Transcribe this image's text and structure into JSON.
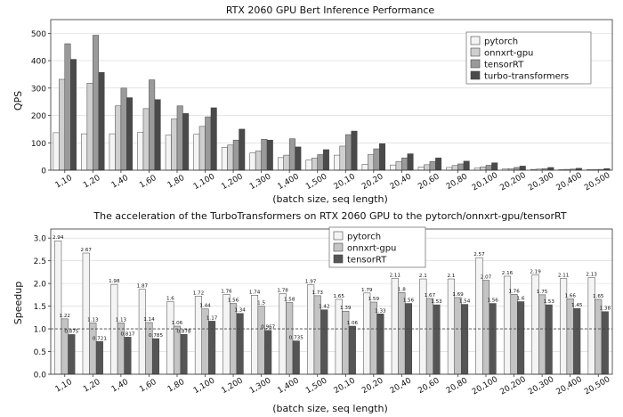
{
  "chart_data": [
    {
      "type": "bar",
      "title": "RTX 2060 GPU Bert Inference Performance",
      "xlabel": "(batch size, seq length)",
      "ylabel": "QPS",
      "ylim": [
        0,
        550
      ],
      "yticks": [
        0,
        100,
        200,
        300,
        400,
        500
      ],
      "grid": "horizontal",
      "legend_position": "top-right",
      "categories": [
        "1,10",
        "1,20",
        "1,40",
        "1,60",
        "1,80",
        "1,100",
        "1,200",
        "1,300",
        "1,400",
        "1,500",
        "20,10",
        "20,20",
        "20,40",
        "20,60",
        "20,80",
        "20,100",
        "20,200",
        "20,300",
        "20,400",
        "20,500"
      ],
      "series": [
        {
          "name": "pytorch",
          "color": "#f4f4f4",
          "values": [
            137,
            133,
            133,
            138,
            128,
            131,
            83,
            63,
            46,
            37,
            55,
            22,
            19,
            12,
            10,
            8,
            5,
            3,
            2,
            2
          ]
        },
        {
          "name": "onnxrt-gpu",
          "color": "#cfcfcf",
          "values": [
            332,
            318,
            235,
            225,
            187,
            160,
            92,
            70,
            55,
            44,
            88,
            57,
            32,
            20,
            17,
            12,
            6,
            4,
            3,
            2
          ]
        },
        {
          "name": "tensorRT",
          "color": "#9a9a9a",
          "values": [
            462,
            493,
            300,
            330,
            235,
            195,
            110,
            113,
            115,
            57,
            130,
            78,
            45,
            32,
            23,
            18,
            10,
            6,
            4,
            3
          ]
        },
        {
          "name": "turbo-transformers",
          "color": "#4a4a4a",
          "values": [
            405,
            357,
            265,
            258,
            207,
            228,
            150,
            110,
            85,
            75,
            143,
            97,
            60,
            45,
            33,
            27,
            15,
            10,
            7,
            6
          ]
        }
      ]
    },
    {
      "type": "bar",
      "title": "The acceleration of the TurboTransformers on RTX 2060 GPU to the pytorch/onnxrt-gpu/tensorRT",
      "xlabel": "(batch size, seq length)",
      "ylabel": "Speedup",
      "ylim": [
        0,
        3.2
      ],
      "yticks": [
        0.0,
        0.5,
        1.0,
        1.5,
        2.0,
        2.5,
        3.0
      ],
      "reference_line": 1.0,
      "grid": "horizontal",
      "legend_position": "top-center",
      "categories": [
        "1,10",
        "1,20",
        "1,40",
        "1,60",
        "1,80",
        "1,100",
        "1,200",
        "1,300",
        "1,400",
        "1,500",
        "20,10",
        "20,20",
        "20,40",
        "20,60",
        "20,80",
        "20,100",
        "20,200",
        "20,300",
        "20,400",
        "20,500"
      ],
      "series": [
        {
          "name": "pytorch",
          "color": "#f4f4f4",
          "values": [
            2.94,
            2.67,
            1.98,
            1.87,
            1.6,
            1.72,
            1.76,
            1.74,
            1.78,
            1.97,
            1.65,
            1.79,
            2.11,
            2.1,
            2.1,
            2.57,
            2.16,
            2.19,
            2.11,
            2.13
          ],
          "labels": [
            "2.94",
            "2.67",
            "1.98",
            "1.87",
            "1.6",
            "1.72",
            "1.76",
            "1.74",
            "1.78",
            "1.97",
            "1.65",
            "1.79",
            "2.11",
            "2.1",
            "2.1",
            "2.57",
            "2.16",
            "2.19",
            "2.11",
            "2.13"
          ]
        },
        {
          "name": "onnxrt-gpu",
          "color": "#c4c4c4",
          "values": [
            1.22,
            1.13,
            1.13,
            1.14,
            1.06,
            1.44,
            1.56,
            1.5,
            1.58,
            1.73,
            1.39,
            1.59,
            1.8,
            1.67,
            1.69,
            2.07,
            1.76,
            1.75,
            1.66,
            1.65
          ],
          "labels": [
            "1.22",
            "1.13",
            "1.13",
            "1.14",
            "1.06",
            "1.44",
            "1.56",
            "1.5",
            "1.58",
            "1.73",
            "1.39",
            "1.59",
            "1.8",
            "1.67",
            "1.69",
            "2.07",
            "1.76",
            "1.75",
            "1.66",
            "1.65"
          ]
        },
        {
          "name": "tensorRT",
          "color": "#555555",
          "values": [
            0.875,
            0.721,
            0.817,
            0.785,
            0.878,
            1.17,
            1.34,
            0.967,
            0.735,
            1.42,
            1.06,
            1.33,
            1.56,
            1.53,
            1.54,
            1.56,
            1.6,
            1.53,
            1.45,
            1.38
          ],
          "labels": [
            "0.875",
            "0.721",
            "0.817",
            "0.785",
            "0.878",
            "1.17",
            "1.34",
            "0.967",
            "0.735",
            "1.42",
            "1.06",
            "1.33",
            "1.56",
            "1.53",
            "1.54",
            "1.56",
            "1.6",
            "1.53",
            "1.45",
            "1.38"
          ]
        }
      ]
    }
  ]
}
